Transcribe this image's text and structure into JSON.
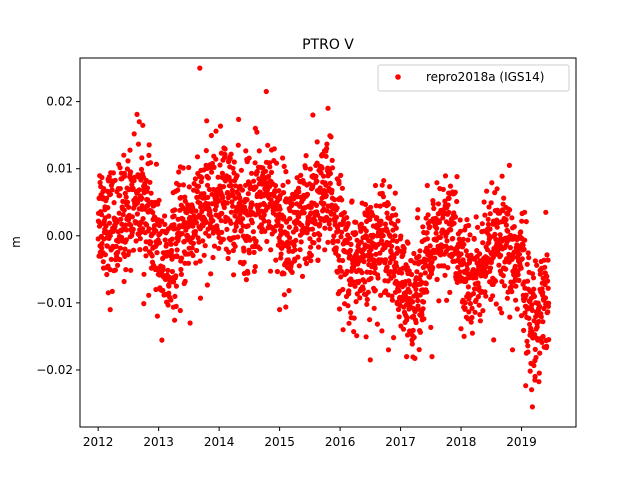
{
  "chart_data": {
    "type": "scatter",
    "title": "PTRO V",
    "xlabel": "",
    "ylabel": "m",
    "xlim": [
      2011.7,
      2019.9
    ],
    "ylim": [
      -0.0285,
      0.0265
    ],
    "x_ticks": [
      2012,
      2013,
      2014,
      2015,
      2016,
      2017,
      2018,
      2019
    ],
    "x_tick_labels": [
      "2012",
      "2013",
      "2014",
      "2015",
      "2016",
      "2017",
      "2018",
      "2019"
    ],
    "y_ticks": [
      0.02,
      0.01,
      0.0,
      -0.01,
      -0.02
    ],
    "y_tick_labels": [
      "0.02",
      "0.01",
      "0.00",
      "−0.01",
      "−0.02"
    ],
    "legend_position": "upper right",
    "grid": false,
    "series": [
      {
        "name": "repro2018a (IGS14)",
        "color": "#ff0000",
        "marker": "circle",
        "anchors": [
          [
            2012.0,
            0.004
          ],
          [
            2012.15,
            0.002
          ],
          [
            2012.3,
            0.001
          ],
          [
            2012.45,
            0.003
          ],
          [
            2012.6,
            0.006
          ],
          [
            2012.75,
            0.005
          ],
          [
            2012.9,
            0.0
          ],
          [
            2013.05,
            -0.003
          ],
          [
            2013.15,
            -0.006
          ],
          [
            2013.3,
            -0.001
          ],
          [
            2013.5,
            0.002
          ],
          [
            2013.7,
            0.003
          ],
          [
            2013.9,
            0.005
          ],
          [
            2014.1,
            0.006
          ],
          [
            2014.3,
            0.004
          ],
          [
            2014.5,
            0.002
          ],
          [
            2014.7,
            0.006
          ],
          [
            2014.85,
            0.007
          ],
          [
            2015.0,
            0.002
          ],
          [
            2015.15,
            0.0
          ],
          [
            2015.3,
            0.001
          ],
          [
            2015.5,
            0.003
          ],
          [
            2015.7,
            0.006
          ],
          [
            2015.85,
            0.005
          ],
          [
            2016.0,
            0.0
          ],
          [
            2016.15,
            -0.004
          ],
          [
            2016.35,
            -0.005
          ],
          [
            2016.55,
            -0.002
          ],
          [
            2016.75,
            0.001
          ],
          [
            2016.9,
            -0.003
          ],
          [
            2017.0,
            -0.008
          ],
          [
            2017.15,
            -0.01
          ],
          [
            2017.3,
            -0.007
          ],
          [
            2017.5,
            -0.003
          ],
          [
            2017.7,
            0.0
          ],
          [
            2017.85,
            0.002
          ],
          [
            2018.0,
            -0.005
          ],
          [
            2018.2,
            -0.007
          ],
          [
            2018.4,
            -0.004
          ],
          [
            2018.6,
            -0.002
          ],
          [
            2018.8,
            -0.003
          ],
          [
            2019.0,
            -0.004
          ],
          [
            2019.1,
            -0.01
          ],
          [
            2019.2,
            -0.014
          ],
          [
            2019.3,
            -0.01
          ],
          [
            2019.45,
            -0.008
          ]
        ],
        "outliers": [
          [
            2013.68,
            0.025
          ],
          [
            2014.78,
            0.0215
          ],
          [
            2015.8,
            0.019
          ],
          [
            2013.52,
            -0.013
          ],
          [
            2016.5,
            -0.0185
          ],
          [
            2017.1,
            -0.018
          ],
          [
            2017.52,
            -0.018
          ],
          [
            2019.18,
            -0.0255
          ],
          [
            2019.22,
            -0.0215
          ],
          [
            2012.68,
            0.017
          ],
          [
            2012.2,
            -0.011
          ],
          [
            2015.0,
            -0.011
          ],
          [
            2016.05,
            -0.014
          ],
          [
            2018.05,
            -0.015
          ],
          [
            2018.85,
            -0.017
          ],
          [
            2016.8,
            -0.017
          ],
          [
            2015.55,
            0.018
          ],
          [
            2014.6,
            0.016
          ],
          [
            2019.4,
            0.0035
          ],
          [
            2019.05,
            0.0035
          ]
        ],
        "n_points": 2300,
        "noise_sd": 0.0043
      }
    ]
  }
}
